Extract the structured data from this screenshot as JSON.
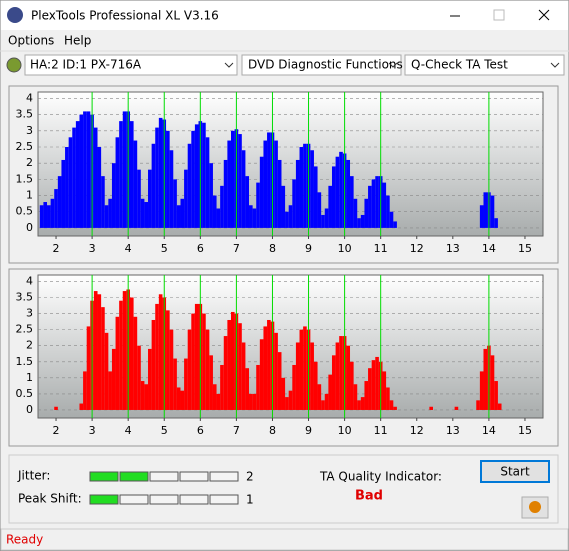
{
  "window": {
    "title": "PlexTools Professional XL V3.16",
    "menu": [
      "Options",
      "Help"
    ],
    "toolbar": [
      "HA:2 ID:1  PX-716A",
      "DVD Diagnostic Functions",
      "Q-Check TA Test"
    ],
    "status": "Ready"
  },
  "quality": {
    "jitter_label": "Jitter:",
    "jitter": 2,
    "peak_shift_label": "Peak Shift:",
    "peak_shift": 1,
    "indicator_label": "TA Quality Indicator:",
    "indicator": "Bad",
    "start": "Start"
  },
  "chart_data": [
    {
      "type": "bar",
      "color": "#0000ff",
      "grid": true,
      "xlim": [
        1.5,
        15.5
      ],
      "ylim": [
        -0.25,
        4.2
      ],
      "xticks": [
        2,
        3,
        4,
        5,
        6,
        7,
        8,
        9,
        10,
        11,
        12,
        13,
        14,
        15
      ],
      "yticks": [
        0,
        0.5,
        1,
        1.5,
        2,
        2.5,
        3,
        3.5,
        4
      ],
      "vlines": [
        3,
        4,
        5,
        6,
        7,
        8,
        9,
        10,
        11,
        14
      ],
      "vline_color": "#00dd00",
      "x": [
        1.6,
        1.7,
        1.8,
        1.9,
        2.0,
        2.1,
        2.2,
        2.3,
        2.4,
        2.5,
        2.6,
        2.7,
        2.8,
        2.9,
        3.0,
        3.1,
        3.2,
        3.3,
        3.4,
        3.5,
        3.6,
        3.7,
        3.8,
        3.9,
        4.0,
        4.1,
        4.2,
        4.3,
        4.4,
        4.5,
        4.6,
        4.7,
        4.8,
        4.9,
        5.0,
        5.1,
        5.2,
        5.3,
        5.4,
        5.5,
        5.6,
        5.7,
        5.8,
        5.9,
        6.0,
        6.1,
        6.2,
        6.3,
        6.4,
        6.5,
        6.6,
        6.7,
        6.8,
        6.9,
        7.0,
        7.1,
        7.2,
        7.3,
        7.4,
        7.5,
        7.6,
        7.7,
        7.8,
        7.9,
        8.0,
        8.1,
        8.2,
        8.3,
        8.4,
        8.5,
        8.6,
        8.7,
        8.8,
        8.9,
        9.0,
        9.1,
        9.2,
        9.3,
        9.4,
        9.5,
        9.6,
        9.7,
        9.8,
        9.9,
        10.0,
        10.1,
        10.2,
        10.3,
        10.4,
        10.5,
        10.6,
        10.7,
        10.8,
        10.9,
        11.0,
        11.1,
        11.2,
        11.3,
        11.4,
        11.5,
        11.6,
        11.7,
        11.8,
        11.9,
        12.0,
        12.1,
        12.2,
        12.3,
        12.4,
        12.5,
        12.6,
        12.7,
        12.8,
        12.9,
        13.0,
        13.1,
        13.2,
        13.3,
        13.4,
        13.5,
        13.6,
        13.7,
        13.8,
        13.9,
        14.0,
        14.1,
        14.2,
        14.3,
        14.4,
        14.5,
        14.6,
        14.7,
        14.8,
        14.9
      ],
      "values": [
        0.7,
        0.8,
        0.7,
        0.9,
        1.2,
        1.6,
        2.1,
        2.5,
        2.8,
        3.1,
        3.3,
        3.5,
        3.6,
        3.6,
        3.5,
        3.1,
        2.5,
        1.6,
        0.7,
        0.9,
        2.0,
        2.8,
        3.3,
        3.6,
        3.6,
        3.3,
        2.7,
        1.8,
        0.9,
        0.8,
        1.8,
        2.6,
        3.1,
        3.4,
        3.35,
        3.0,
        2.4,
        1.5,
        0.7,
        0.9,
        1.8,
        2.6,
        3.0,
        3.2,
        3.3,
        3.25,
        2.8,
        2.0,
        1.0,
        0.6,
        1.3,
        2.1,
        2.7,
        3.0,
        3.05,
        2.9,
        2.4,
        1.6,
        0.7,
        0.6,
        1.4,
        2.2,
        2.7,
        2.95,
        2.95,
        2.7,
        2.1,
        1.3,
        0.5,
        0.7,
        1.5,
        2.1,
        2.5,
        2.6,
        2.6,
        2.4,
        1.9,
        1.1,
        0.4,
        0.6,
        1.3,
        1.9,
        2.2,
        2.35,
        2.3,
        2.1,
        1.6,
        0.9,
        0.3,
        0.4,
        0.9,
        1.3,
        1.5,
        1.6,
        1.6,
        1.4,
        1.0,
        0.5,
        0.2,
        0,
        0,
        0,
        0,
        0,
        0,
        0,
        0,
        0,
        0,
        0,
        0,
        0,
        0,
        0,
        0,
        0,
        0,
        0,
        0,
        0,
        0,
        0,
        0.7,
        1.1,
        1.1,
        1.0,
        0.3,
        0,
        0,
        0,
        0,
        0,
        0,
        0
      ]
    },
    {
      "type": "bar",
      "color": "#ff0000",
      "grid": true,
      "xlim": [
        1.5,
        15.5
      ],
      "ylim": [
        -0.25,
        4.2
      ],
      "xticks": [
        2,
        3,
        4,
        5,
        6,
        7,
        8,
        9,
        10,
        11,
        12,
        13,
        14,
        15
      ],
      "yticks": [
        0,
        0.5,
        1,
        1.5,
        2,
        2.5,
        3,
        3.5,
        4
      ],
      "vlines": [
        3,
        4,
        5,
        6,
        7,
        8,
        9,
        10,
        11,
        14
      ],
      "vline_color": "#00dd00",
      "x": [
        1.6,
        1.7,
        1.8,
        1.9,
        2.0,
        2.1,
        2.2,
        2.3,
        2.4,
        2.5,
        2.6,
        2.7,
        2.8,
        2.9,
        3.0,
        3.1,
        3.2,
        3.3,
        3.4,
        3.5,
        3.6,
        3.7,
        3.8,
        3.9,
        4.0,
        4.1,
        4.2,
        4.3,
        4.4,
        4.5,
        4.6,
        4.7,
        4.8,
        4.9,
        5.0,
        5.1,
        5.2,
        5.3,
        5.4,
        5.5,
        5.6,
        5.7,
        5.8,
        5.9,
        6.0,
        6.1,
        6.2,
        6.3,
        6.4,
        6.5,
        6.6,
        6.7,
        6.8,
        6.9,
        7.0,
        7.1,
        7.2,
        7.3,
        7.4,
        7.5,
        7.6,
        7.7,
        7.8,
        7.9,
        8.0,
        8.1,
        8.2,
        8.3,
        8.4,
        8.5,
        8.6,
        8.7,
        8.8,
        8.9,
        9.0,
        9.1,
        9.2,
        9.3,
        9.4,
        9.5,
        9.6,
        9.7,
        9.8,
        9.9,
        10.0,
        10.1,
        10.2,
        10.3,
        10.4,
        10.5,
        10.6,
        10.7,
        10.8,
        10.9,
        11.0,
        11.1,
        11.2,
        11.3,
        11.4,
        11.5,
        11.6,
        11.7,
        11.8,
        11.9,
        12.0,
        12.1,
        12.2,
        12.3,
        12.4,
        12.5,
        12.6,
        12.7,
        12.8,
        12.9,
        13.0,
        13.1,
        13.2,
        13.3,
        13.4,
        13.5,
        13.6,
        13.7,
        13.8,
        13.9,
        14.0,
        14.1,
        14.2,
        14.3,
        14.4,
        14.5,
        14.6,
        14.7,
        14.8,
        14.9
      ],
      "values": [
        0,
        0,
        0,
        0,
        0.1,
        0,
        0,
        0,
        0,
        0,
        0,
        0.2,
        1.2,
        2.6,
        3.4,
        3.7,
        3.6,
        3.2,
        2.4,
        1.2,
        1.9,
        2.9,
        3.4,
        3.7,
        3.75,
        3.5,
        2.9,
        2.0,
        0.9,
        0.8,
        1.9,
        2.8,
        3.3,
        3.6,
        3.5,
        3.1,
        2.5,
        1.6,
        0.7,
        0.6,
        1.6,
        2.5,
        3.0,
        3.3,
        3.3,
        3.0,
        2.5,
        1.7,
        0.8,
        0.5,
        1.4,
        2.3,
        2.8,
        3.05,
        3.0,
        2.7,
        2.1,
        1.3,
        0.5,
        0.5,
        1.4,
        2.2,
        2.6,
        2.8,
        2.75,
        2.4,
        1.8,
        1.0,
        0.4,
        0.6,
        1.4,
        2.1,
        2.5,
        2.6,
        2.5,
        2.1,
        1.5,
        0.8,
        0.3,
        0.5,
        1.1,
        1.7,
        2.1,
        2.3,
        2.3,
        2.0,
        1.5,
        0.8,
        0.3,
        0.4,
        0.9,
        1.3,
        1.55,
        1.65,
        1.5,
        1.2,
        0.7,
        0.3,
        0.1,
        0,
        0,
        0,
        0,
        0,
        0,
        0,
        0,
        0,
        0.1,
        0,
        0,
        0,
        0,
        0,
        0,
        0.1,
        0,
        0,
        0,
        0,
        0,
        0.3,
        1.2,
        1.9,
        2.0,
        1.7,
        0.9,
        0.2,
        0,
        0,
        0,
        0,
        0,
        0
      ]
    }
  ]
}
